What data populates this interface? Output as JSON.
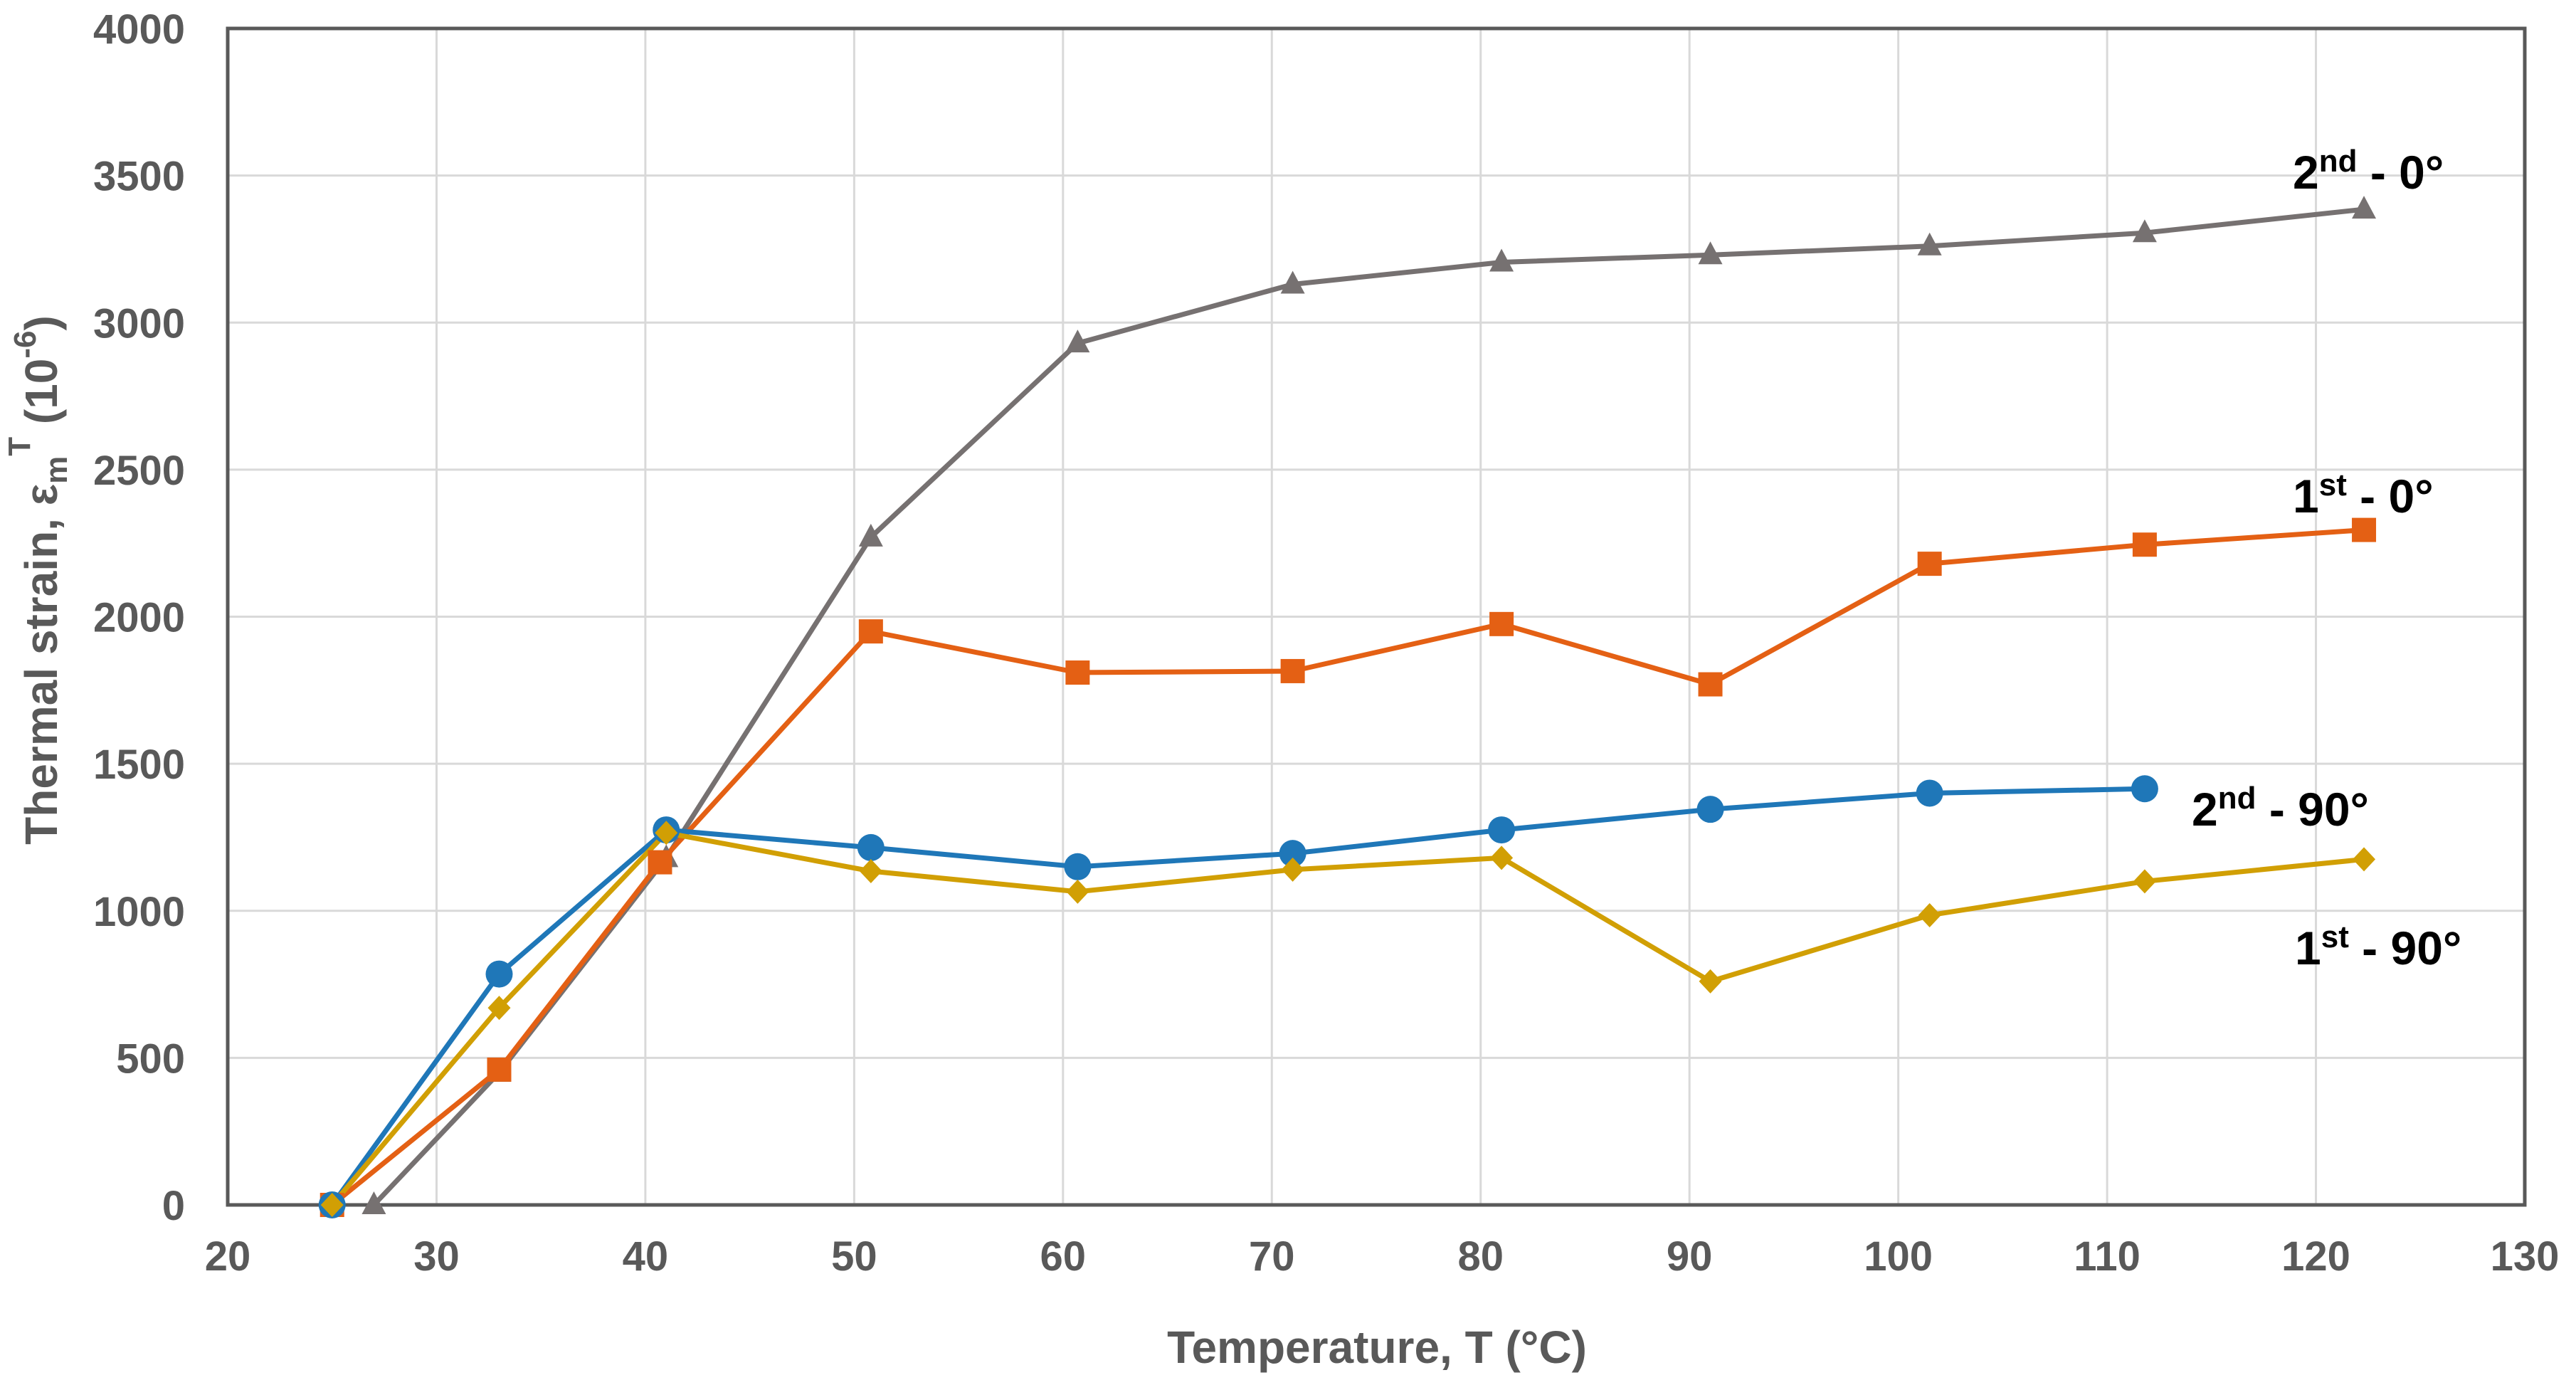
{
  "chart_data": {
    "type": "line",
    "xlabel": "Temperature, T (°C)",
    "ylabel": {
      "main": "Thermal strain, ε",
      "sub": "m",
      "sup": "T",
      "unit_open": " (10",
      "unit_exp": "-6",
      "unit_close": ")"
    },
    "xlim": [
      20,
      130
    ],
    "ylim": [
      0,
      4000
    ],
    "xticks": [
      20,
      30,
      40,
      50,
      60,
      70,
      80,
      90,
      100,
      110,
      120,
      130
    ],
    "yticks": [
      0,
      500,
      1000,
      1500,
      2000,
      2500,
      3000,
      3500,
      4000
    ],
    "grid": true,
    "series": [
      {
        "id": "s2nd0",
        "label_main": "2",
        "label_sup": "nd",
        "label_rest": " - 0°",
        "color": "#767171",
        "marker": "triangle",
        "x": [
          27,
          33,
          41,
          50.8,
          60.7,
          71,
          81,
          91,
          101.5,
          111.8,
          122.3
        ],
        "y": [
          0,
          450,
          1180,
          2270,
          2930,
          3130,
          3205,
          3230,
          3260,
          3305,
          3385
        ]
      },
      {
        "id": "s1st0",
        "label_main": "1",
        "label_sup": "st",
        "label_rest": " - 0°",
        "color": "#E46014",
        "marker": "square",
        "x": [
          25,
          33,
          40.7,
          50.8,
          60.7,
          71,
          81,
          91,
          101.5,
          111.8,
          122.3
        ],
        "y": [
          0,
          460,
          1165,
          1950,
          1810,
          1815,
          1975,
          1770,
          2180,
          2245,
          2295
        ]
      },
      {
        "id": "s2nd90",
        "label_main": "2",
        "label_sup": "nd",
        "label_rest": " - 90°",
        "color": "#1F77B8",
        "marker": "circle",
        "x": [
          25,
          33,
          41,
          50.8,
          60.7,
          71,
          81,
          91,
          101.5,
          111.8
        ],
        "y": [
          0,
          785,
          1275,
          1215,
          1150,
          1195,
          1275,
          1345,
          1400,
          1415
        ]
      },
      {
        "id": "s1st90",
        "label_main": "1",
        "label_sup": "st",
        "label_rest": " - 90°",
        "color": "#D19F04",
        "marker": "diamond",
        "x": [
          25,
          33,
          41,
          50.8,
          60.7,
          71,
          81,
          91,
          101.5,
          111.8,
          122.3
        ],
        "y": [
          0,
          670,
          1265,
          1135,
          1065,
          1140,
          1180,
          760,
          985,
          1100,
          1175
        ]
      }
    ]
  }
}
